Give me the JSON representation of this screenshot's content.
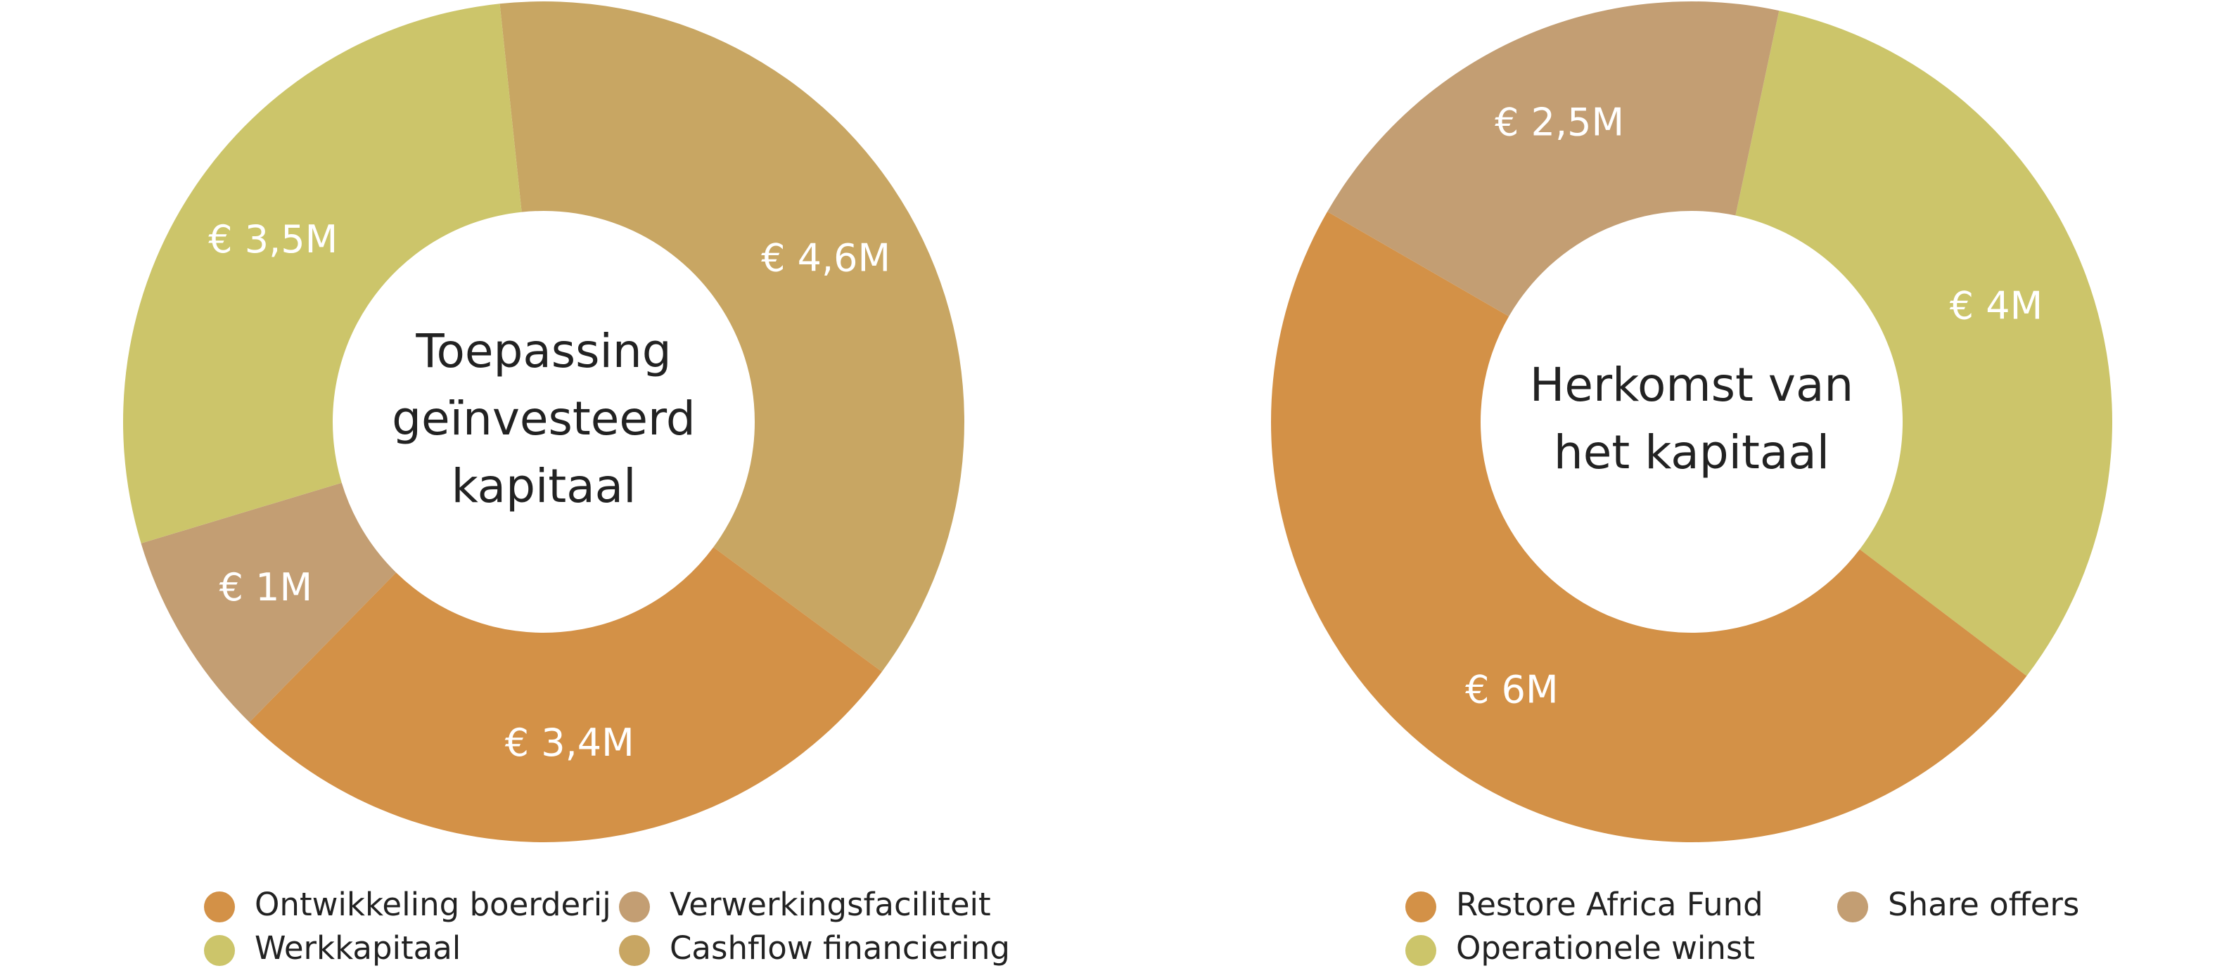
{
  "chart_data": [
    {
      "type": "pie",
      "donut": true,
      "center_title": [
        "Toepassing",
        "geïnvesteerd",
        "kapitaal"
      ],
      "slices": [
        {
          "label": "Cashflow financiering",
          "value": 4.6,
          "value_label": "€ 4,6M",
          "color": "#C8A663"
        },
        {
          "label": "Ontwikkeling boerderij",
          "value": 3.4,
          "value_label": "€ 3,4M",
          "color": "#D39147"
        },
        {
          "label": "Verwerkingsfaciliteit",
          "value": 1,
          "value_label": "€ 1M",
          "color": "#C39E73"
        },
        {
          "label": "Werkkapitaal",
          "value": 3.5,
          "value_label": "€ 3,5M",
          "color": "#CCC56A"
        }
      ],
      "legend": [
        [
          "Ontwikkeling boerderij",
          "Verwerkingsfaciliteit"
        ],
        [
          "Werkkapitaal",
          "Cashflow financiering"
        ]
      ],
      "legend_position": "bottom"
    },
    {
      "type": "pie",
      "donut": true,
      "center_title": [
        "Herkomst van",
        "het kapitaal"
      ],
      "slices": [
        {
          "label": "Operationele winst",
          "value": 4,
          "value_label": "€ 4M",
          "color": "#CCC56A"
        },
        {
          "label": "Restore Africa Fund",
          "value": 6,
          "value_label": "€ 6M",
          "color": "#D39147"
        },
        {
          "label": "Share offers",
          "value": 2.5,
          "value_label": "€ 2,5M",
          "color": "#C39E73"
        }
      ],
      "legend": [
        [
          "Restore Africa Fund",
          "Share offers"
        ],
        [
          "Operationele winst"
        ]
      ],
      "legend_position": "bottom"
    }
  ]
}
